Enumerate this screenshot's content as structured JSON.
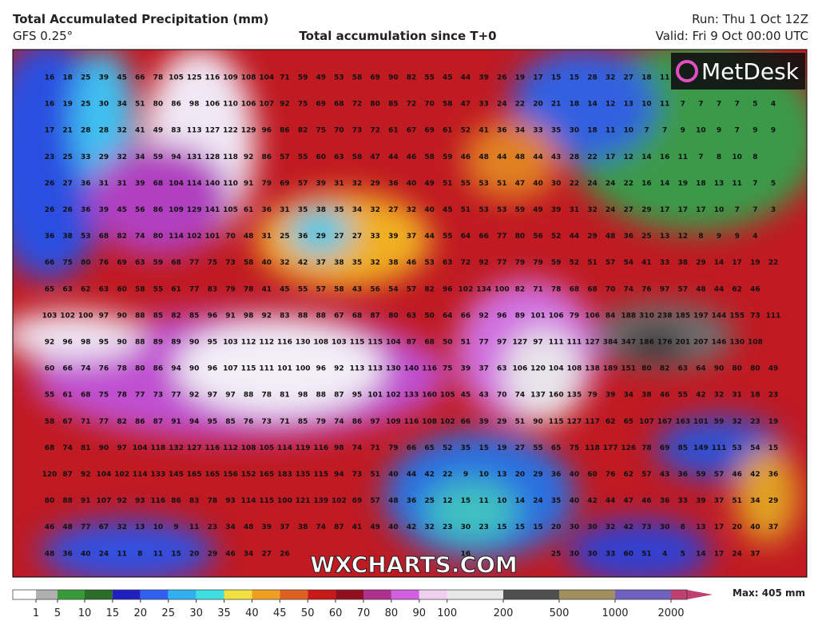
{
  "header": {
    "title": "Total Accumulated Precipitation (mm)",
    "model": "GFS 0.25°",
    "subtitle": "Total accumulation since T+0",
    "run": "Run: Thu 1 Oct 12Z",
    "valid": "Valid: Fri 9 Oct 00:00 UTC"
  },
  "logo": "MetDesk",
  "watermark": "WXCHARTS.COM",
  "max_label": "Max: 405 mm",
  "grid": [
    [
      16,
      18,
      25,
      39,
      45,
      66,
      78,
      105,
      125,
      116,
      109,
      108,
      104,
      71,
      59,
      49,
      53,
      58,
      69,
      90,
      82,
      55,
      45,
      44,
      39,
      26,
      19,
      17,
      15,
      15,
      28,
      32,
      27,
      18,
      11
    ],
    [
      16,
      19,
      25,
      30,
      34,
      51,
      80,
      86,
      98,
      106,
      110,
      106,
      107,
      92,
      75,
      69,
      68,
      72,
      80,
      85,
      72,
      70,
      58,
      47,
      33,
      24,
      22,
      20,
      21,
      18,
      14,
      12,
      13,
      10,
      11,
      7,
      7,
      7,
      7,
      5,
      4
    ],
    [
      17,
      21,
      28,
      28,
      32,
      41,
      49,
      83,
      113,
      127,
      122,
      129,
      96,
      86,
      82,
      75,
      70,
      73,
      72,
      61,
      67,
      69,
      61,
      52,
      41,
      36,
      34,
      33,
      35,
      30,
      18,
      11,
      10,
      7,
      7,
      9,
      10,
      9,
      7,
      9,
      9
    ],
    [
      23,
      25,
      33,
      29,
      32,
      34,
      59,
      94,
      131,
      128,
      118,
      92,
      86,
      57,
      55,
      60,
      63,
      58,
      47,
      44,
      46,
      58,
      59,
      46,
      48,
      44,
      48,
      44,
      43,
      28,
      22,
      17,
      12,
      14,
      16,
      11,
      7,
      8,
      10,
      8
    ],
    [
      26,
      27,
      36,
      31,
      31,
      39,
      68,
      104,
      114,
      140,
      110,
      91,
      79,
      69,
      57,
      39,
      31,
      32,
      29,
      36,
      40,
      49,
      51,
      55,
      53,
      51,
      47,
      40,
      30,
      22,
      24,
      24,
      22,
      16,
      14,
      19,
      18,
      13,
      11,
      7,
      5
    ],
    [
      26,
      26,
      36,
      39,
      45,
      56,
      86,
      109,
      129,
      141,
      105,
      61,
      36,
      31,
      35,
      38,
      35,
      34,
      32,
      27,
      32,
      40,
      45,
      51,
      53,
      53,
      59,
      49,
      39,
      31,
      32,
      24,
      27,
      29,
      17,
      17,
      17,
      10,
      7,
      7,
      3
    ],
    [
      36,
      38,
      53,
      68,
      82,
      74,
      80,
      114,
      102,
      101,
      70,
      48,
      31,
      25,
      36,
      29,
      27,
      27,
      33,
      39,
      37,
      44,
      55,
      64,
      66,
      77,
      80,
      56,
      52,
      44,
      29,
      48,
      36,
      25,
      13,
      12,
      8,
      9,
      9,
      4
    ],
    [
      66,
      75,
      80,
      76,
      69,
      63,
      59,
      68,
      77,
      75,
      73,
      58,
      40,
      32,
      42,
      37,
      38,
      35,
      32,
      38,
      46,
      53,
      63,
      72,
      92,
      77,
      79,
      79,
      59,
      52,
      51,
      57,
      54,
      41,
      33,
      38,
      29,
      14,
      17,
      19,
      22
    ],
    [
      65,
      63,
      62,
      63,
      60,
      58,
      55,
      61,
      77,
      83,
      79,
      78,
      41,
      45,
      55,
      57,
      58,
      43,
      56,
      54,
      57,
      82,
      96,
      102,
      134,
      100,
      82,
      71,
      78,
      68,
      68,
      70,
      74,
      76,
      97,
      57,
      48,
      44,
      62,
      46
    ],
    [
      103,
      102,
      100,
      97,
      90,
      88,
      85,
      82,
      85,
      96,
      91,
      98,
      92,
      83,
      88,
      88,
      67,
      68,
      87,
      80,
      63,
      50,
      64,
      66,
      92,
      96,
      89,
      101,
      106,
      79,
      106,
      84,
      188,
      310,
      238,
      185,
      197,
      144,
      155,
      73,
      111
    ],
    [
      92,
      96,
      98,
      95,
      90,
      88,
      89,
      89,
      90,
      95,
      103,
      112,
      112,
      116,
      130,
      108,
      103,
      115,
      115,
      104,
      87,
      68,
      50,
      51,
      77,
      97,
      127,
      97,
      111,
      111,
      127,
      384,
      347,
      186,
      176,
      201,
      207,
      146,
      130,
      108
    ],
    [
      60,
      66,
      74,
      76,
      78,
      80,
      86,
      94,
      90,
      96,
      107,
      115,
      111,
      101,
      100,
      96,
      92,
      113,
      113,
      130,
      140,
      116,
      75,
      39,
      37,
      63,
      106,
      120,
      104,
      108,
      138,
      189,
      151,
      80,
      82,
      63,
      64,
      90,
      80,
      80,
      49
    ],
    [
      55,
      61,
      68,
      75,
      78,
      77,
      73,
      77,
      92,
      97,
      97,
      88,
      78,
      81,
      98,
      88,
      87,
      95,
      101,
      102,
      133,
      160,
      105,
      45,
      43,
      70,
      74,
      137,
      160,
      135,
      79,
      39,
      34,
      38,
      46,
      55,
      42,
      32,
      31,
      18,
      23
    ],
    [
      58,
      67,
      71,
      77,
      82,
      86,
      87,
      91,
      94,
      95,
      85,
      76,
      73,
      71,
      85,
      79,
      74,
      86,
      97,
      109,
      116,
      108,
      102,
      66,
      39,
      29,
      51,
      90,
      115,
      127,
      117,
      62,
      65,
      107,
      167,
      163,
      101,
      59,
      32,
      23,
      19
    ],
    [
      68,
      74,
      81,
      90,
      97,
      104,
      118,
      132,
      127,
      116,
      112,
      108,
      105,
      114,
      119,
      116,
      98,
      74,
      71,
      79,
      66,
      65,
      52,
      35,
      15,
      19,
      27,
      55,
      65,
      75,
      118,
      177,
      126,
      78,
      69,
      85,
      149,
      111,
      53,
      54,
      15
    ],
    [
      120,
      87,
      92,
      104,
      102,
      114,
      133,
      145,
      165,
      165,
      156,
      152,
      165,
      183,
      135,
      115,
      94,
      73,
      51,
      40,
      44,
      42,
      22,
      9,
      10,
      13,
      20,
      29,
      36,
      40,
      60,
      76,
      62,
      57,
      43,
      36,
      59,
      57,
      46,
      42,
      36
    ],
    [
      80,
      88,
      91,
      107,
      92,
      93,
      116,
      86,
      83,
      78,
      93,
      114,
      115,
      100,
      121,
      139,
      102,
      69,
      57,
      48,
      36,
      25,
      12,
      15,
      11,
      10,
      14,
      24,
      35,
      40,
      42,
      44,
      47,
      46,
      36,
      33,
      39,
      37,
      51,
      34,
      29
    ],
    [
      46,
      48,
      77,
      67,
      32,
      13,
      10,
      9,
      11,
      23,
      34,
      48,
      39,
      37,
      38,
      74,
      87,
      41,
      49,
      40,
      42,
      32,
      23,
      30,
      23,
      15,
      15,
      15,
      20,
      30,
      30,
      32,
      42,
      73,
      30,
      8,
      13,
      17,
      20,
      40,
      37
    ],
    [
      48,
      36,
      40,
      24,
      11,
      8,
      11,
      15,
      20,
      29,
      46,
      34,
      27,
      26,
      null,
      null,
      null,
      null,
      null,
      null,
      null,
      null,
      null,
      16,
      null,
      null,
      null,
      null,
      25,
      30,
      30,
      33,
      60,
      51,
      4,
      5,
      14,
      17,
      24,
      37
    ]
  ],
  "colorbar": {
    "ticks": [
      1,
      5,
      10,
      15,
      20,
      25,
      30,
      35,
      40,
      45,
      50,
      60,
      70,
      80,
      90,
      100,
      200,
      500,
      1000,
      2000
    ],
    "colors": [
      "#ffffff",
      "#b0b0b0",
      "#3a9a3a",
      "#2a6e2a",
      "#2020c0",
      "#3060f0",
      "#30b0f0",
      "#40e0e0",
      "#f0e040",
      "#f0a020",
      "#e06020",
      "#c81818",
      "#901020",
      "#b03090",
      "#d060e0",
      "#f0d0f0",
      "#e8e8e8",
      "#505050",
      "#a09060",
      "#7060c0",
      "#c04070"
    ]
  }
}
